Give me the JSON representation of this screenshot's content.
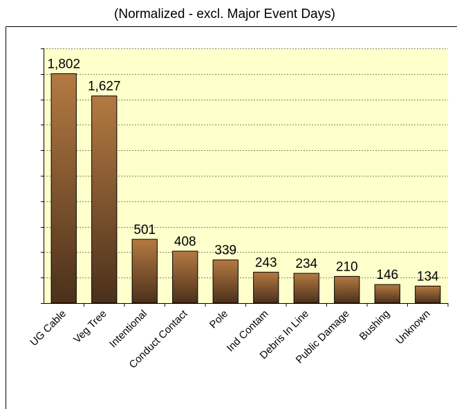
{
  "chart_data": {
    "type": "bar",
    "title": "(Normalized - excl. Major Event Days)",
    "categories": [
      "UG Cable",
      "Veg Tree",
      "Intentional",
      "Conduct Contact",
      "Pole",
      "Ind Contam",
      "Debris In Line",
      "Public Damage",
      "Bushing",
      "Unknown"
    ],
    "values": [
      1802,
      1627,
      501,
      408,
      339,
      243,
      234,
      210,
      146,
      134
    ],
    "value_labels": [
      "1,802",
      "1,627",
      "501",
      "408",
      "339",
      "243",
      "234",
      "210",
      "146",
      "134"
    ],
    "color": "#8a5a30",
    "ylim": [
      0,
      2000
    ],
    "yticks": [
      0,
      200,
      400,
      600,
      800,
      1000,
      1200,
      1400,
      1600,
      1800,
      2000
    ],
    "grid": true
  }
}
